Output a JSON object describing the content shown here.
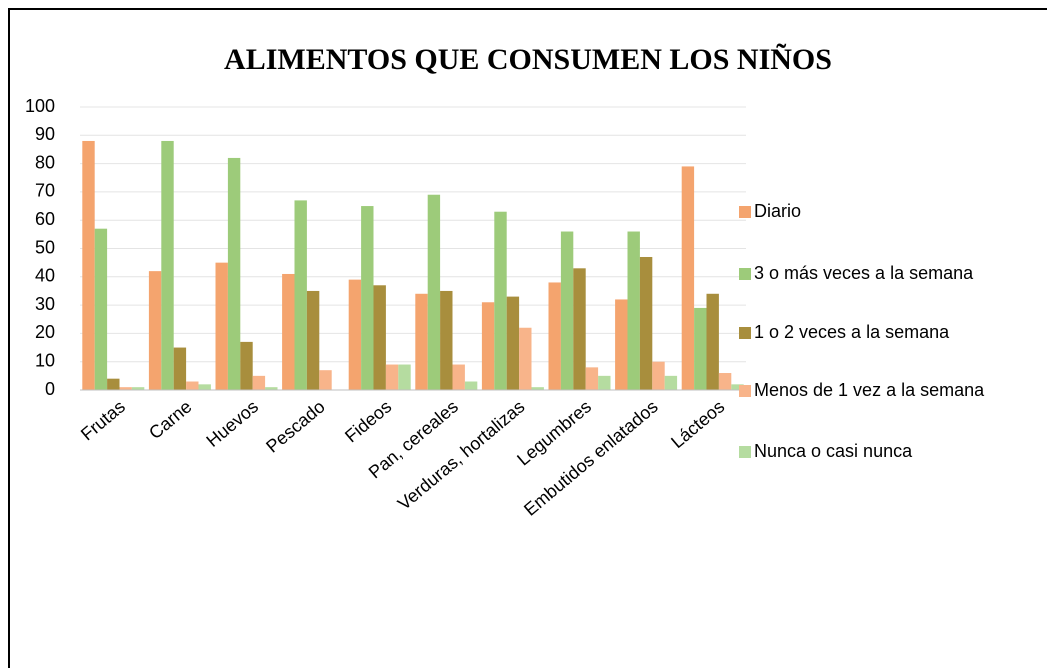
{
  "chart_data": {
    "type": "bar",
    "title": "ALIMENTOS QUE CONSUMEN LOS NIÑOS",
    "categories": [
      "Frutas",
      "Carne",
      "Huevos",
      "Pescado",
      "Fideos",
      "Pan, cereales",
      "Verduras, hortalizas",
      "Legumbres",
      "Embutidos enlatados",
      "Lácteos"
    ],
    "series": [
      {
        "name": "Diario",
        "color": "#f4a46e",
        "values": [
          88,
          42,
          45,
          41,
          39,
          34,
          31,
          38,
          32,
          79
        ]
      },
      {
        "name": "3 o más veces a la semana",
        "color": "#9dcb7a",
        "values": [
          57,
          88,
          82,
          67,
          65,
          69,
          63,
          56,
          56,
          29
        ]
      },
      {
        "name": "1 o 2 veces a la semana",
        "color": "#a88e3d",
        "values": [
          4,
          15,
          17,
          35,
          37,
          35,
          33,
          43,
          47,
          34
        ]
      },
      {
        "name": "Menos de 1 vez a la semana",
        "color": "#f8b48a",
        "values": [
          1,
          3,
          5,
          7,
          9,
          9,
          22,
          8,
          10,
          6
        ]
      },
      {
        "name": "Nunca o casi nunca",
        "color": "#b5dca0",
        "values": [
          1,
          2,
          1,
          0,
          9,
          3,
          1,
          5,
          5,
          2
        ]
      }
    ],
    "ylim": [
      0,
      100
    ],
    "yticks": [
      0,
      10,
      20,
      30,
      40,
      50,
      60,
      70,
      80,
      90,
      100
    ],
    "grid": true,
    "legend": "right"
  }
}
